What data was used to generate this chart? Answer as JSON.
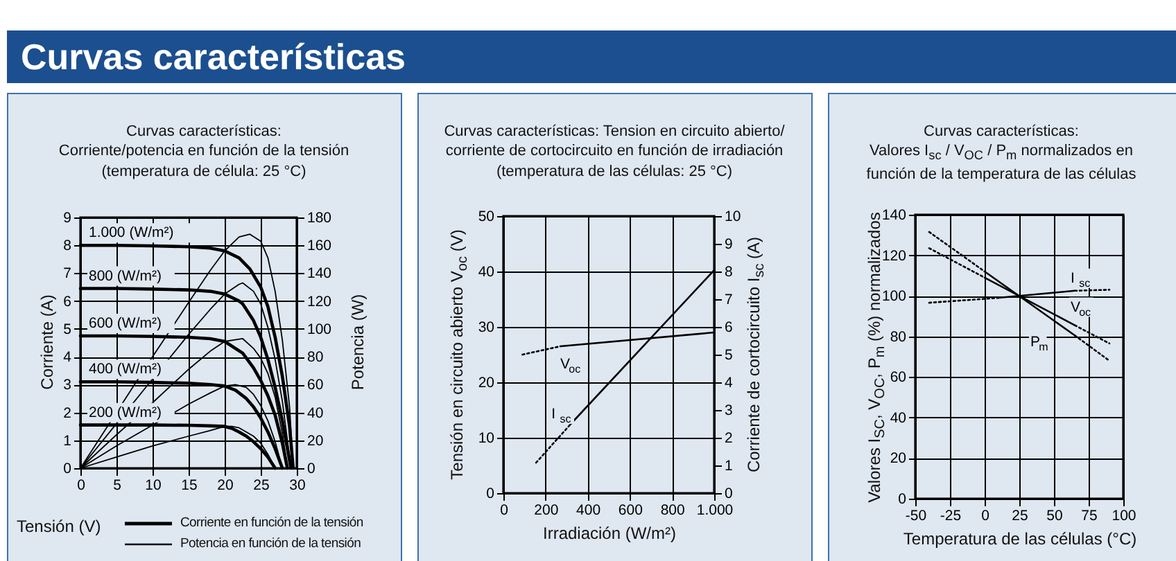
{
  "chart_data": [
    {
      "type": "other",
      "title": "Curvas características"
    },
    {
      "type": "line",
      "title": "Curvas características:\nCorriente/potencia en función de la tensión\n(temperatura de célula: 25 °C)",
      "xlabel": "Tensión (V)",
      "ylabel": "Corriente (A)",
      "y2label": "Potencia (W)",
      "xlim": [
        0,
        30
      ],
      "xticks": [
        0,
        5,
        10,
        15,
        20,
        25,
        30
      ],
      "ylim": [
        0,
        9
      ],
      "yticks": [
        0,
        1,
        2,
        3,
        4,
        5,
        6,
        7,
        8,
        9
      ],
      "y2lim": [
        0,
        180
      ],
      "y2ticks": [
        0,
        20,
        40,
        60,
        80,
        100,
        120,
        140,
        160,
        180
      ],
      "grid": true,
      "series": [
        {
          "name": "1.000 (W/m²)",
          "color": "#000000",
          "axis": "y",
          "x": [
            0,
            5,
            10,
            15,
            18,
            20,
            22,
            23.5,
            25,
            26,
            27,
            28,
            29,
            29.5
          ],
          "values": [
            8.0,
            8.0,
            7.98,
            7.95,
            7.9,
            7.8,
            7.55,
            7.15,
            6.5,
            5.8,
            4.7,
            3.3,
            1.5,
            0
          ]
        },
        {
          "name": "800 (W/m²)",
          "color": "#000000",
          "axis": "y",
          "x": [
            0,
            5,
            10,
            15,
            18,
            20,
            22,
            22.5,
            24,
            25,
            26,
            27,
            28,
            29.2
          ],
          "values": [
            6.45,
            6.45,
            6.43,
            6.4,
            6.35,
            6.25,
            6.0,
            5.9,
            5.3,
            4.7,
            3.9,
            2.9,
            1.7,
            0
          ]
        },
        {
          "name": "600 (W/m²)",
          "color": "#000000",
          "axis": "y",
          "x": [
            0,
            5,
            10,
            15,
            18,
            20,
            22.5,
            24,
            25,
            26,
            27,
            28,
            28.7
          ],
          "values": [
            4.75,
            4.75,
            4.73,
            4.7,
            4.65,
            4.55,
            4.13,
            3.6,
            3.15,
            2.6,
            1.9,
            0.9,
            0
          ]
        },
        {
          "name": "400 (W/m²)",
          "color": "#000000",
          "axis": "y",
          "x": [
            0,
            5,
            10,
            15,
            18,
            20,
            21.5,
            23,
            24,
            25,
            26,
            27,
            28
          ],
          "values": [
            3.1,
            3.1,
            3.08,
            3.05,
            3.0,
            2.95,
            2.8,
            2.5,
            2.2,
            1.8,
            1.3,
            0.7,
            0
          ]
        },
        {
          "name": "200 (W/m²)",
          "color": "#000000",
          "axis": "y",
          "x": [
            0,
            5,
            10,
            15,
            18,
            20,
            21,
            22,
            23,
            24,
            25,
            26,
            27
          ],
          "values": [
            1.55,
            1.55,
            1.55,
            1.54,
            1.52,
            1.5,
            1.43,
            1.3,
            1.15,
            0.95,
            0.7,
            0.4,
            0
          ]
        },
        {
          "color": "#000000",
          "axis": "y2",
          "x": [
            0,
            10,
            15,
            18,
            20,
            22,
            23.5,
            25,
            26,
            27,
            28,
            29,
            29.5
          ],
          "values": [
            0,
            80,
            119,
            142,
            156,
            166,
            168,
            163,
            151,
            127,
            92,
            44,
            0
          ]
        },
        {
          "color": "#000000",
          "axis": "y2",
          "x": [
            0,
            5,
            10,
            15,
            18,
            20,
            22,
            22.5,
            24,
            25,
            26,
            27,
            28,
            29.2
          ],
          "values": [
            0,
            32,
            64,
            96,
            114,
            125,
            132,
            133,
            127,
            118,
            101,
            78,
            48,
            0
          ]
        },
        {
          "color": "#000000",
          "axis": "y2",
          "x": [
            0,
            5,
            10,
            15,
            18,
            20,
            22.5,
            24,
            25,
            26,
            27,
            28,
            28.7
          ],
          "values": [
            0,
            24,
            47,
            71,
            84,
            91,
            93,
            86,
            79,
            68,
            51,
            25,
            0
          ]
        },
        {
          "color": "#000000",
          "axis": "y2",
          "x": [
            0,
            5,
            10,
            15,
            18,
            20,
            21.5,
            23,
            24,
            25,
            26,
            27,
            28
          ],
          "values": [
            0,
            16,
            31,
            46,
            54,
            59,
            60,
            58,
            53,
            45,
            34,
            19,
            0
          ]
        },
        {
          "color": "#000000",
          "axis": "y2",
          "x": [
            0,
            5,
            10,
            15,
            18,
            20,
            21,
            22,
            23,
            24,
            25,
            26,
            27
          ],
          "values": [
            0,
            8,
            16,
            23,
            27,
            30,
            30,
            29,
            26,
            23,
            18,
            10,
            0
          ]
        }
      ],
      "annotations": [
        "Corriente en función de la tensión",
        "Potencia en función de la tensión"
      ]
    },
    {
      "type": "line",
      "title": "Curvas características: Tension en circuito abierto/\ncorriente de cortocircuito en función de irradiación\n(temperatura de las células: 25 °C)",
      "xlabel": "Irradiación (W/m²)",
      "ylabel": "Tensión en circuito abierto V$_{oc}$ (V)",
      "y2label": "Corriente de cortocircuito I$_{sc}$ (A)",
      "xlim": [
        0,
        1000
      ],
      "xticks": [
        0,
        200,
        400,
        600,
        800,
        {
          "value": 1000,
          "label": "1.000"
        }
      ],
      "ylim": [
        0,
        50
      ],
      "yticks": [
        0,
        10,
        20,
        30,
        40,
        50
      ],
      "y2lim": [
        0,
        10
      ],
      "y2ticks": [
        0,
        1,
        2,
        3,
        4,
        5,
        6,
        7,
        8,
        9,
        10
      ],
      "grid": true,
      "series": [
        {
          "color": "#000000",
          "axis": "y",
          "line_style": "dotted",
          "x": [
            90,
            270
          ],
          "values": [
            25,
            26.5
          ]
        },
        {
          "name": "V$_{oc}$",
          "color": "#000000",
          "axis": "y",
          "line_style": "solid",
          "x": [
            270,
            1000
          ],
          "values": [
            26.5,
            29
          ]
        },
        {
          "color": "#000000",
          "axis": "y2",
          "line_style": "dotted",
          "x": [
            155,
            320
          ],
          "values": [
            1.1,
            2.5
          ]
        },
        {
          "name": "I$_{sc}$",
          "color": "#000000",
          "axis": "y2",
          "line_style": "solid",
          "x": [
            320,
            1000
          ],
          "values": [
            2.5,
            8.05
          ]
        }
      ]
    },
    {
      "type": "line",
      "title": "Curvas características:\nValores I$_{sc}$ / V$_{OC}$ / P$_{m}$ normalizados en\nfunción de la temperatura de las células",
      "xlabel": "Temperatura de las células (°C)",
      "ylabel": "Valores I$_{SC}$, V$_{OC}$, P$_{m}$ (%) normalizados",
      "xlim": [
        -50,
        100
      ],
      "xticks": [
        -50,
        -25,
        0,
        25,
        50,
        75,
        100
      ],
      "ylim": [
        0,
        140
      ],
      "yticks": [
        0,
        20,
        40,
        60,
        80,
        100,
        120,
        140
      ],
      "grid": true,
      "series": [
        {
          "color": "#000000",
          "line_style": "dotted",
          "x": [
            -40,
            10
          ],
          "values": [
            96.6,
            99
          ]
        },
        {
          "name": "I$_{sc}$",
          "color": "#000000",
          "line_style": "solid",
          "x": [
            10,
            65
          ],
          "values": [
            99,
            102.5
          ]
        },
        {
          "color": "#000000",
          "line_style": "dotted",
          "x": [
            65,
            90
          ],
          "values": [
            102.5,
            103
          ]
        },
        {
          "color": "#000000",
          "line_style": "dotted",
          "x": [
            -40,
            0
          ],
          "values": [
            123.5,
            109
          ]
        },
        {
          "name": "V$_{oc}$",
          "color": "#000000",
          "line_style": "solid",
          "x": [
            0,
            65
          ],
          "values": [
            109,
            85.5
          ]
        },
        {
          "color": "#000000",
          "line_style": "dotted",
          "x": [
            65,
            90
          ],
          "values": [
            85.5,
            76.5
          ]
        },
        {
          "color": "#000000",
          "line_style": "dotted",
          "x": [
            -40,
            0
          ],
          "values": [
            131.5,
            112
          ]
        },
        {
          "name": "P$_{m}$",
          "color": "#000000",
          "line_style": "solid",
          "x": [
            0,
            65
          ],
          "values": [
            112,
            80.5
          ]
        },
        {
          "color": "#000000",
          "line_style": "dotted",
          "x": [
            65,
            90
          ],
          "values": [
            80.5,
            68
          ]
        }
      ]
    }
  ]
}
